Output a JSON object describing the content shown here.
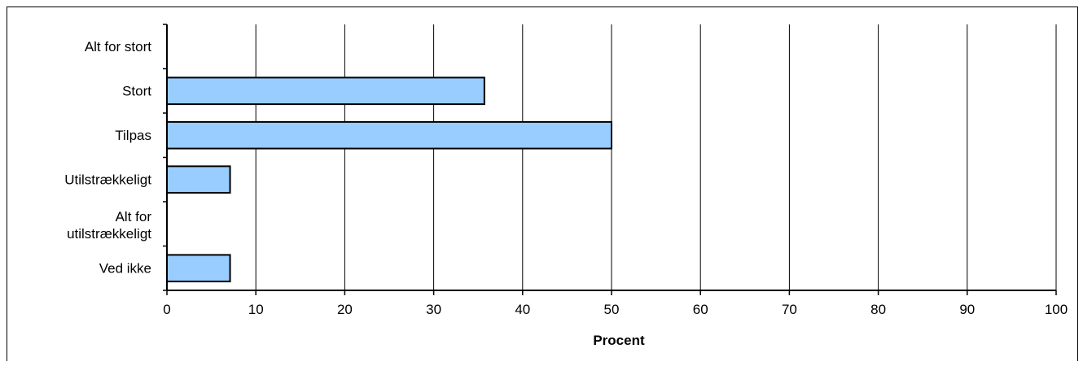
{
  "chart_data": {
    "type": "bar",
    "orientation": "horizontal",
    "categories": [
      "Alt for stort",
      "Stort",
      "Tilpas",
      "Utilstrækkeligt",
      "Alt for utilstrækkeligt",
      "Ved ikke"
    ],
    "values": [
      0,
      35.7,
      50,
      7.1,
      0,
      7.1
    ],
    "xlabel": "Procent",
    "ylabel": "",
    "xlim": [
      0,
      100
    ],
    "xticks": [
      0,
      10,
      20,
      30,
      40,
      50,
      60,
      70,
      80,
      90,
      100
    ],
    "grid": "vertical",
    "legend": "none",
    "colors": {
      "bar_fill": "#99CCFF",
      "bar_stroke": "#000000",
      "grid": "#000000",
      "axis": "#000000"
    }
  }
}
